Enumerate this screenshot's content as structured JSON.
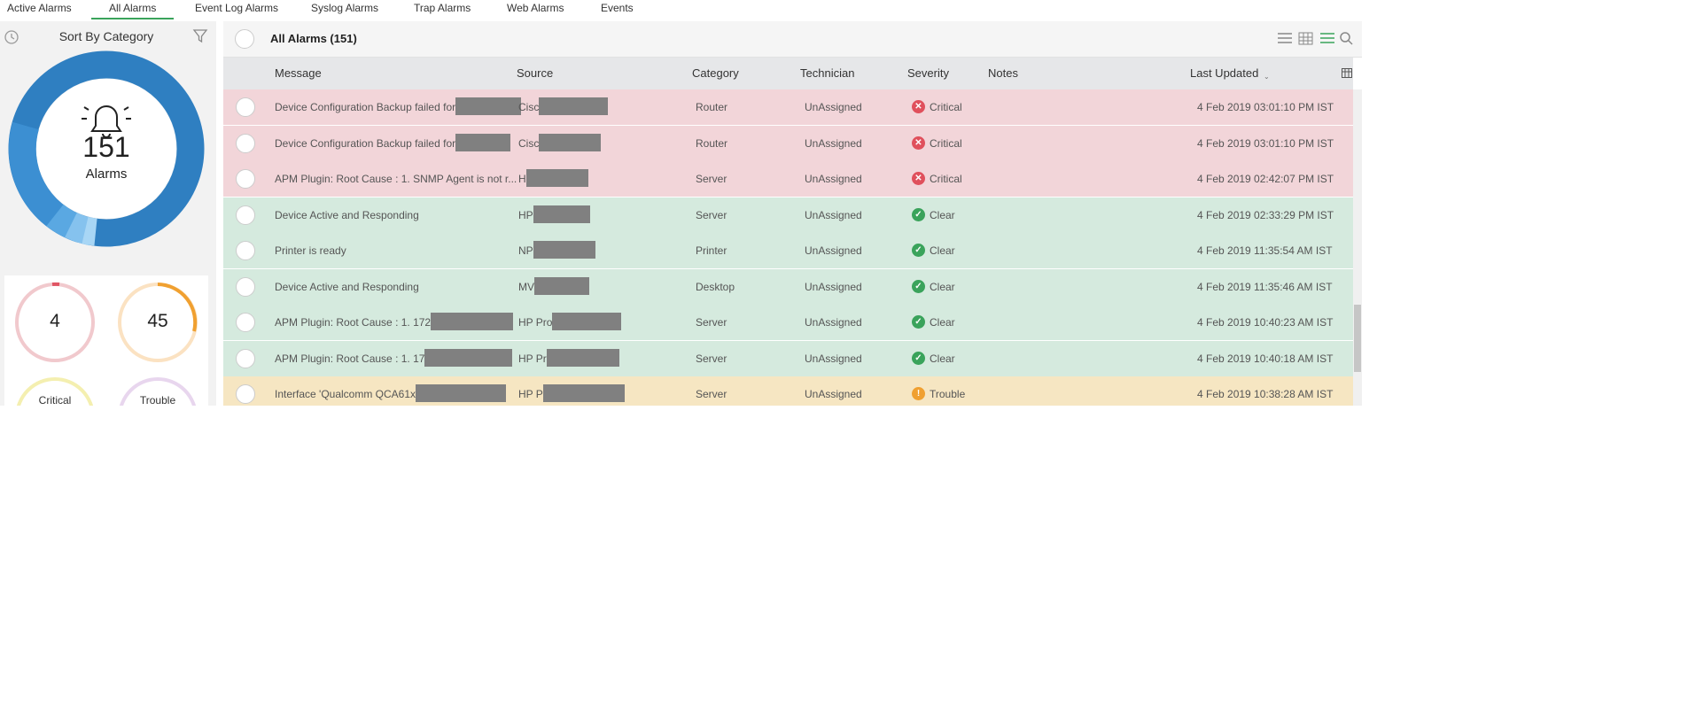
{
  "tabs": [
    "Active Alarms",
    "All Alarms",
    "Event Log Alarms",
    "Syslog Alarms",
    "Trap Alarms",
    "Web Alarms",
    "Events"
  ],
  "active_tab": 1,
  "sidebar": {
    "title": "Sort By Category",
    "total": "151",
    "total_label": "Alarms",
    "cards": [
      {
        "count": "4",
        "label": "Critical"
      },
      {
        "count": "45",
        "label": "Trouble"
      }
    ]
  },
  "table": {
    "title": "All Alarms (151)",
    "columns": [
      "Message",
      "Source",
      "Category",
      "Technician",
      "Severity",
      "Notes",
      "Last Updated"
    ],
    "rows": [
      {
        "message": "Device Configuration Backup failed for",
        "source": "Cisc",
        "category": "Router",
        "technician": "UnAssigned",
        "severity": "Critical",
        "updated": "4 Feb 2019 03:01:10 PM IST"
      },
      {
        "message": "Device Configuration Backup failed for",
        "source": "Cisc",
        "category": "Router",
        "technician": "UnAssigned",
        "severity": "Critical",
        "updated": "4 Feb 2019 03:01:10 PM IST"
      },
      {
        "message": "APM Plugin: Root Cause : 1. SNMP Agent is not r...",
        "source": "H",
        "category": "Server",
        "technician": "UnAssigned",
        "severity": "Critical",
        "updated": "4 Feb 2019 02:42:07 PM IST"
      },
      {
        "message": "Device Active and Responding",
        "source": "HP",
        "category": "Server",
        "technician": "UnAssigned",
        "severity": "Clear",
        "updated": "4 Feb 2019 02:33:29 PM IST"
      },
      {
        "message": "Printer is ready",
        "source": "NP",
        "category": "Printer",
        "technician": "UnAssigned",
        "severity": "Clear",
        "updated": "4 Feb 2019 11:35:54 AM IST"
      },
      {
        "message": "Device Active and Responding",
        "source": "MV",
        "category": "Desktop",
        "technician": "UnAssigned",
        "severity": "Clear",
        "updated": "4 Feb 2019 11:35:46 AM IST"
      },
      {
        "message": "APM Plugin: Root Cause : 1. 172",
        "source": "HP Pro",
        "category": "Server",
        "technician": "UnAssigned",
        "severity": "Clear",
        "updated": "4 Feb 2019 10:40:23 AM IST"
      },
      {
        "message": "APM Plugin: Root Cause : 1. 17",
        "source": "HP Pr",
        "category": "Server",
        "technician": "UnAssigned",
        "severity": "Clear",
        "updated": "4 Feb 2019 10:40:18 AM IST"
      },
      {
        "message": "Interface 'Qualcomm QCA61x",
        "source": "HP P",
        "category": "Server",
        "technician": "UnAssigned",
        "severity": "Trouble",
        "updated": "4 Feb 2019 10:38:28 AM IST"
      }
    ]
  }
}
